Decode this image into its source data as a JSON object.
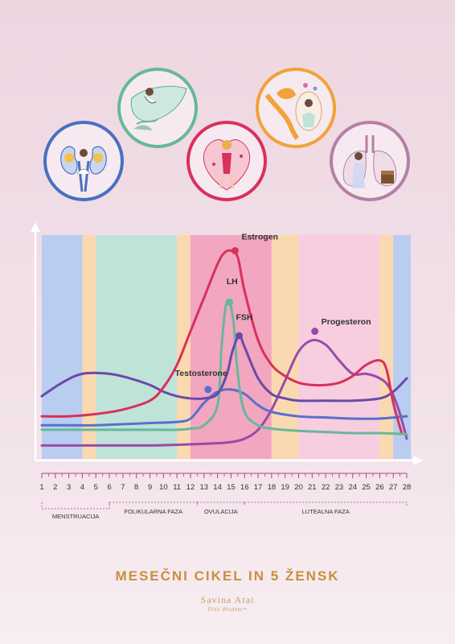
{
  "title": "MESEČNI CIKEL IN 5 ŽENSK",
  "brand": {
    "name": "Savina Atai",
    "tagline": "Elixir Wisdom™"
  },
  "icons": [
    {
      "name": "kidneys-illustration-icon",
      "color": "#4a6fc2"
    },
    {
      "name": "liver-illustration-icon",
      "color": "#67b89a"
    },
    {
      "name": "heart-illustration-icon",
      "color": "#d9305c"
    },
    {
      "name": "brain-illustration-icon",
      "color": "#f1a238"
    },
    {
      "name": "lungs-illustration-icon",
      "color": "#b57fa6"
    }
  ],
  "chart_data": {
    "type": "line",
    "x": [
      1,
      2,
      3,
      4,
      5,
      6,
      7,
      8,
      9,
      10,
      11,
      12,
      13,
      14,
      15,
      16,
      17,
      18,
      19,
      20,
      21,
      22,
      23,
      24,
      25,
      26,
      27,
      28
    ],
    "xlim": [
      1,
      28
    ],
    "ylim": [
      0,
      100
    ],
    "x_ticks": [
      "1",
      "2",
      "3",
      "4",
      "5",
      "6",
      "7",
      "8",
      "9",
      "10",
      "11",
      "12",
      "13",
      "14",
      "15",
      "16",
      "17",
      "18",
      "19",
      "20",
      "21",
      "22",
      "23",
      "24",
      "25",
      "26",
      "27",
      "28"
    ],
    "phase_bands": [
      {
        "from": 1,
        "to": 4,
        "color": "#b8cdef"
      },
      {
        "from": 4,
        "to": 5,
        "color": "#fbd9b0"
      },
      {
        "from": 5,
        "to": 11,
        "color": "#bfe3d8"
      },
      {
        "from": 11,
        "to": 12,
        "color": "#fbd9b0"
      },
      {
        "from": 12,
        "to": 18,
        "color": "#f2a6c0"
      },
      {
        "from": 18,
        "to": 20,
        "color": "#fbd9b0"
      },
      {
        "from": 20,
        "to": 26,
        "color": "#f7cde0"
      },
      {
        "from": 26,
        "to": 27,
        "color": "#fbd9b0"
      },
      {
        "from": 27,
        "to": 28.3,
        "color": "#b8cdef"
      }
    ],
    "phases": [
      {
        "label": "MENSTRUACIJA",
        "from": 1,
        "to": 6,
        "row": 2
      },
      {
        "label": "FOLIKULARNA FAZA",
        "from": 6,
        "to": 12.5,
        "row": 1
      },
      {
        "label": "OVULACIJA",
        "from": 12.5,
        "to": 16,
        "row": 1
      },
      {
        "label": "LUTEALNA FAZA",
        "from": 16,
        "to": 28,
        "row": 1
      }
    ],
    "series": [
      {
        "name": "Estrogen",
        "color": "#d9305c",
        "x": [
          1,
          3,
          5,
          7,
          9,
          10,
          11,
          12,
          13,
          14,
          14.5,
          15,
          15.5,
          16,
          17,
          18,
          19,
          20,
          21,
          22,
          23,
          24,
          25,
          26,
          26.5,
          27,
          27.6
        ],
        "values": [
          19,
          19,
          20,
          22,
          26,
          32,
          42,
          57,
          72,
          87,
          92,
          93,
          90,
          75,
          53,
          42,
          37,
          34,
          33,
          33,
          34,
          37,
          42,
          44,
          40,
          25,
          12
        ],
        "label_x": 15.3,
        "label_y": 93
      },
      {
        "name": "LH",
        "color": "#67b89a",
        "x": [
          1,
          5,
          9,
          11,
          12,
          13,
          14,
          14.3,
          14.6,
          14.9,
          15.2,
          15.5,
          16,
          17,
          18,
          20,
          22,
          24,
          26,
          28
        ],
        "values": [
          13,
          13,
          13,
          13,
          13.5,
          15,
          24,
          50,
          68,
          70,
          60,
          38,
          21,
          15,
          13.5,
          12.5,
          12,
          11.5,
          11.5,
          11
        ],
        "label_x": 14.9,
        "label_y": 70
      },
      {
        "name": "FSH",
        "color": "#6a4aa8",
        "x": [
          1,
          2.5,
          4,
          6,
          7.5,
          9,
          10,
          11,
          12,
          13,
          14,
          14.7,
          15.1,
          15.6,
          16,
          17,
          18,
          19,
          20,
          22,
          24,
          26,
          27,
          28
        ],
        "values": [
          28,
          34,
          38,
          38,
          36,
          33,
          30,
          28,
          27,
          27,
          29,
          38,
          48,
          55,
          50,
          36,
          29,
          27,
          26,
          26,
          26,
          27,
          30,
          36
        ],
        "label_x": 15.6,
        "label_y": 55
      },
      {
        "name": "Testosterone",
        "color": "#5b6fcc",
        "x": [
          1,
          3,
          5,
          7,
          9,
          11,
          12,
          13,
          14,
          15,
          16,
          17,
          18,
          20,
          22,
          24,
          26,
          28
        ],
        "values": [
          15,
          15,
          15,
          15.5,
          16,
          16.5,
          18,
          25,
          30,
          31,
          29,
          24,
          21,
          19,
          18.5,
          18,
          18,
          19
        ],
        "label_x": 13.3,
        "label_y": 31
      },
      {
        "name": "Progesteron",
        "color": "#9a4aa6",
        "x": [
          1,
          3,
          6,
          9,
          12,
          14,
          15,
          16,
          17,
          18,
          19,
          20,
          21,
          22,
          23,
          24,
          25,
          26,
          26.7,
          27.4,
          28
        ],
        "values": [
          6,
          6,
          6,
          6,
          6.5,
          7,
          7.5,
          9,
          13,
          22,
          35,
          48,
          53,
          51,
          44,
          38,
          38,
          36,
          32,
          22,
          9
        ],
        "label_x": 21.2,
        "label_y": 57
      }
    ],
    "annotations": [
      {
        "series": "Estrogen",
        "text": "Estrogen",
        "x": 15.3,
        "y": 98,
        "side": "right"
      },
      {
        "series": "LH",
        "text": "LH",
        "x": 14.9,
        "y": 78,
        "side": "right"
      },
      {
        "series": "FSH",
        "text": "FSH",
        "x": 15.6,
        "y": 62,
        "side": "right"
      },
      {
        "series": "Testosterone",
        "text": "Testosterone",
        "x": 13.3,
        "y": 37,
        "side": "left"
      },
      {
        "series": "Progesteron",
        "text": "Progesteron",
        "x": 21.2,
        "y": 60,
        "side": "right"
      }
    ]
  }
}
